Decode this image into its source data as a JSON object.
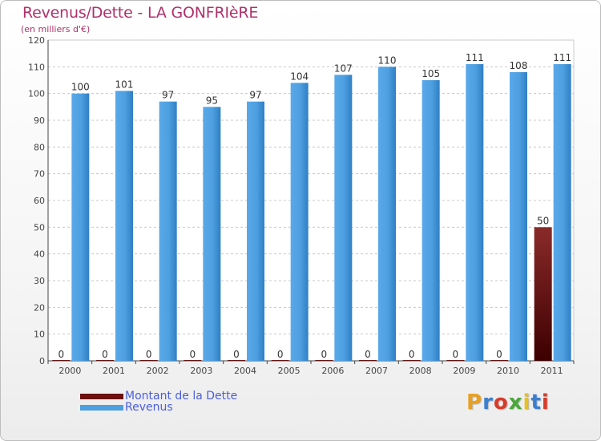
{
  "title": "Revenus/Dette - LA GONFRIèRE",
  "subtitle": "(en milliers d'€)",
  "logo": {
    "text": "Proxiti",
    "colors": [
      "#e8a020",
      "#3a7fd0",
      "#d83a2a",
      "#4aa83a",
      "#e8c020",
      "#3a7fd0",
      "#d83a2a"
    ]
  },
  "chart_data": {
    "type": "bar",
    "title": "Revenus/Dette - LA GONFRIèRE",
    "ylabel": "(en milliers d'€)",
    "xlabel": "",
    "ylim": [
      0,
      120
    ],
    "yticks": [
      0,
      10,
      20,
      30,
      40,
      50,
      60,
      70,
      80,
      90,
      100,
      110,
      120
    ],
    "grid": true,
    "legend_position": "bottom-left",
    "categories": [
      "2000",
      "2001",
      "2002",
      "2003",
      "2004",
      "2005",
      "2006",
      "2007",
      "2008",
      "2009",
      "2010",
      "2011"
    ],
    "series": [
      {
        "name": "Montant de la Dette",
        "color": "#6b0f0f",
        "values": [
          0,
          0,
          0,
          0,
          0,
          0,
          0,
          0,
          0,
          0,
          0,
          50
        ]
      },
      {
        "name": "Revenus",
        "color": "#4d9fe0",
        "values": [
          100,
          101,
          97,
          95,
          97,
          104,
          107,
          110,
          105,
          111,
          108,
          111
        ]
      }
    ]
  }
}
